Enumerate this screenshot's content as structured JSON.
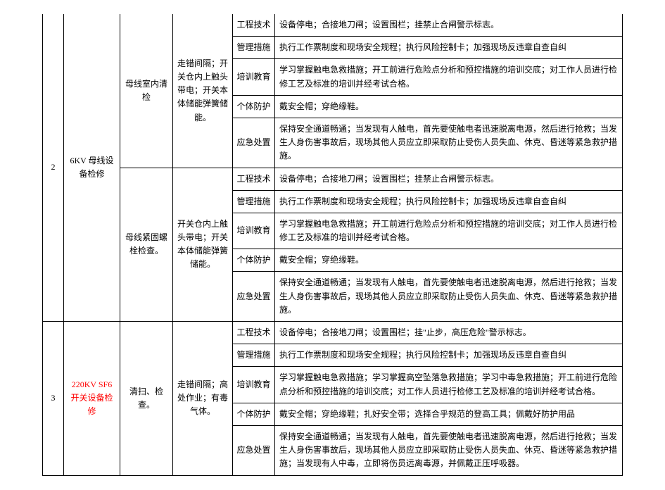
{
  "table": {
    "row2": {
      "index": "2",
      "category": "6KV 母线设备检修",
      "subA": {
        "name": "母线室内清检",
        "risk": "走错间隔；开关仓内上触头带电；开关本体储能弹簧储能。",
        "items": {
          "t1": "工程技术",
          "d1": "设备停电；合接地刀闸；设置围栏；挂禁止合闸警示标志。",
          "t2": "管理措施",
          "d2": "执行工作票制度和现场安全规程；执行风险控制卡；加强现场反违章自查自纠",
          "t3": "培训教育",
          "d3": "学习掌握触电急救措施；开工前进行危险点分析和预控措施的培训交底；对工作人员进行检修工艺及标准的培训并经考试合格。",
          "t4": "个体防护",
          "d4": "戴安全帽；穿绝缘鞋。",
          "t5": "应急处置",
          "d5": "保持安全通道畅通；当发现有人触电，首先要使触电者迅速脱离电源，然后进行抢救；当发生人身伤害事故后，现场其他人员应立即采取防止受伤人员失血、休克、昏迷等紧急救护措施。"
        }
      },
      "subB": {
        "name": "母线紧固螺栓检查。",
        "risk": "开关仓内上触头带电；开关本体储能弹簧储能。",
        "items": {
          "t1": "工程技术",
          "d1": "设备停电；合接地刀闸；设置围栏；挂禁止合闸警示标志。",
          "t2": "管理措施",
          "d2": "执行工作票制度和现场安全规程；执行风险控制卡；加强现场反违章自查自纠",
          "t3": "培训教育",
          "d3": "学习掌握触电急救措施；开工前进行危险点分析和预控措施的培训交底；对工作人员进行检修工艺及标准的培训并经考试合格。",
          "t4": "个体防护",
          "d4": "戴安全帽；穿绝缘鞋。",
          "t5": "应急处置",
          "d5": "保持安全通道畅通；当发现有人触电，首先要使触电者迅速脱离电源，然后进行抢救；当发生人身伤害事故后，现场其他人员应立即采取防止受伤人员失血、休克、昏迷等紧急救护措施。"
        }
      }
    },
    "row3": {
      "index": "3",
      "category": "220KV SF6 开关设备检修",
      "sub": {
        "name": "清扫、检查。",
        "risk": "走错间隔；高处作业；有毒气体。",
        "items": {
          "t1": "工程技术",
          "d1": "设备停电；合接地刀闸；设置围栏；挂\"止步，高压危险\"警示标志。",
          "t2": "管理措施",
          "d2": "执行工作票制度和现场安全规程；执行风险控制卡；加强现场反违章自查自纠",
          "t3": "培训教育",
          "d3": "学习掌握触电急救措施；学习掌握高空坠落急救措施；学习中毒急救措施；开工前进行危险点分析和预控措施的培训交底；对工作人员进行检修工艺及标准的培训并经考试合格。",
          "t4": "个体防护",
          "d4": "戴安全帽；穿绝缘鞋；扎好安全带；选择合乎规范的登高工具；佩戴好防护用品",
          "t5": "应急处置",
          "d5": "保持安全通道畅通；当发现有人触电，首先要使触电者迅速脱离电源，然后进行抢救；当发生人身伤害事故后，现场其他人员应立即采取防止受伤人员失血、休克、昏迷等紧急救护措施；当发现有人中毒，立即将伤员远离毒源，并佩戴正压呼吸器。"
        }
      }
    }
  }
}
